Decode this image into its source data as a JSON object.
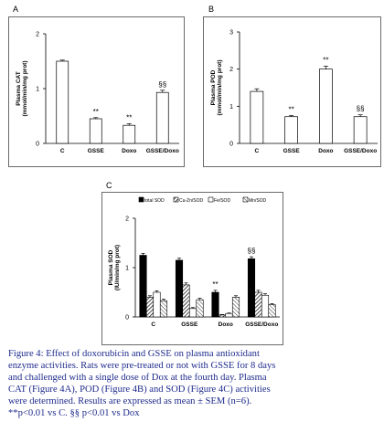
{
  "chart_data": [
    {
      "panel_label": "A",
      "type": "bar",
      "categories": [
        "C",
        "GSSE",
        "Doxo",
        "GSSE/Doxo"
      ],
      "values": [
        1.5,
        0.45,
        0.33,
        0.93
      ],
      "errors": [
        0.02,
        0.02,
        0.03,
        0.04
      ],
      "annotations": [
        "",
        "**",
        "**",
        "§§"
      ],
      "ylabel_lines": [
        "Plasma CAT",
        "(mmol/min/mg prot)"
      ],
      "ylim": [
        0,
        2
      ],
      "yticks": [
        0,
        1,
        2
      ],
      "bar_colors": [
        "#ffffff",
        "#ffffff",
        "#ffffff",
        "#ffffff"
      ]
    },
    {
      "panel_label": "B",
      "type": "bar",
      "categories": [
        "C",
        "GSSE",
        "Doxo",
        "GSSE/Doxo"
      ],
      "values": [
        1.4,
        0.72,
        2.0,
        0.72
      ],
      "errors": [
        0.07,
        0.03,
        0.08,
        0.05
      ],
      "annotations": [
        "",
        "**",
        "**",
        "§§"
      ],
      "ylabel_lines": [
        "Plasma POD",
        "(mmol/min/mg prot)"
      ],
      "ylim": [
        0,
        3
      ],
      "yticks": [
        0,
        1,
        2,
        3
      ],
      "bar_colors": [
        "#ffffff",
        "#ffffff",
        "#ffffff",
        "#ffffff"
      ]
    },
    {
      "panel_label": "C",
      "type": "bar",
      "categories": [
        "C",
        "GSSE",
        "Doxo",
        "GSSE/Doxo"
      ],
      "series": [
        {
          "name": "total SOD",
          "values": [
            1.25,
            1.15,
            0.5,
            1.18
          ],
          "errors": [
            0.04,
            0.04,
            0.04,
            0.04
          ],
          "pattern": "solid-black"
        },
        {
          "name": "Cu-Zn/SOD",
          "values": [
            0.4,
            0.65,
            0.04,
            0.5
          ],
          "errors": [
            0.03,
            0.04,
            0.01,
            0.04
          ],
          "pattern": "hatch-dense"
        },
        {
          "name": "Fe/SOD",
          "values": [
            0.5,
            0.17,
            0.07,
            0.44
          ],
          "errors": [
            0.03,
            0.02,
            0.01,
            0.03
          ],
          "pattern": "white"
        },
        {
          "name": "Mn/SOD",
          "values": [
            0.33,
            0.35,
            0.4,
            0.25
          ],
          "errors": [
            0.03,
            0.03,
            0.03,
            0.02
          ],
          "pattern": "hatch-sparse"
        }
      ],
      "annotations": [
        "",
        "",
        "**",
        "§§"
      ],
      "ylabel_lines": [
        "Plasma SOD",
        "(IU/min/mg prot)"
      ],
      "ylim": [
        0,
        2
      ],
      "yticks": [
        0,
        1,
        2
      ],
      "legend_position": "top"
    }
  ],
  "caption_lines": [
    "Figure 4: Effect of doxorubicin and GSSE on plasma antioxidant",
    "enzyme activities. Rats were pre-treated or not with GSSE for 8 days",
    "and challenged with a single dose of Dox at the fourth day. Plasma",
    "CAT (Figure 4A), POD (Figure 4B) and SOD (Figure 4C) activities",
    "were determined. Results are expressed as mean ± SEM (n=6).",
    "**p<0.01 vs C. §§ p<0.01 vs Dox"
  ],
  "colors": {
    "caption": "#1f2b8c",
    "frame": "#6a6a6a",
    "bar_stroke": "#000000"
  }
}
